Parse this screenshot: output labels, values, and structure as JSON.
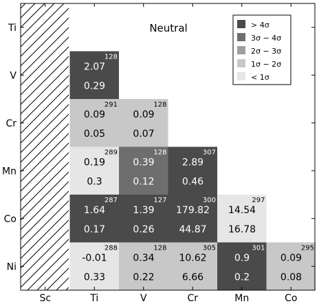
{
  "chart_data": {
    "type": "heatmap",
    "title": "Neutral",
    "xlabel": "",
    "ylabel": "",
    "x_categories": [
      "Sc",
      "Ti",
      "V",
      "Cr",
      "Mn",
      "Co"
    ],
    "y_categories": [
      "Ti",
      "V",
      "Cr",
      "Mn",
      "Co",
      "Ni"
    ],
    "hatched_column": "Sc",
    "legend": {
      "position": "top-right",
      "entries": [
        {
          "label": "> 4σ",
          "color": "#4a4a4a"
        },
        {
          "label": "3σ − 4σ",
          "color": "#6e6e6e"
        },
        {
          "label": "2σ − 3σ",
          "color": "#9e9e9e"
        },
        {
          "label": "1σ − 2σ",
          "color": "#c8c8c8"
        },
        {
          "label": "< 1σ",
          "color": "#e6e6e6"
        }
      ]
    },
    "cells": [
      {
        "row": "V",
        "col": "Ti",
        "top": "2.07",
        "bottom": "0.29",
        "count": "128",
        "level": 0
      },
      {
        "row": "Cr",
        "col": "Ti",
        "top": "0.09",
        "bottom": "0.05",
        "count": "291",
        "level": 3
      },
      {
        "row": "Cr",
        "col": "V",
        "top": "0.09",
        "bottom": "0.07",
        "count": "128",
        "level": 3
      },
      {
        "row": "Mn",
        "col": "Ti",
        "top": "0.19",
        "bottom": "0.3",
        "count": "289",
        "level": 4
      },
      {
        "row": "Mn",
        "col": "V",
        "top": "0.39",
        "bottom": "0.12",
        "count": "128",
        "level": 1
      },
      {
        "row": "Mn",
        "col": "Cr",
        "top": "2.89",
        "bottom": "0.46",
        "count": "307",
        "level": 0
      },
      {
        "row": "Co",
        "col": "Ti",
        "top": "1.64",
        "bottom": "0.17",
        "count": "287",
        "level": 0
      },
      {
        "row": "Co",
        "col": "V",
        "top": "1.39",
        "bottom": "0.26",
        "count": "127",
        "level": 0
      },
      {
        "row": "Co",
        "col": "Cr",
        "top": "179.82",
        "bottom": "44.87",
        "count": "300",
        "level": 0
      },
      {
        "row": "Co",
        "col": "Mn",
        "top": "14.54",
        "bottom": "16.78",
        "count": "297",
        "level": 4
      },
      {
        "row": "Ni",
        "col": "Ti",
        "top": "-0.01",
        "bottom": "0.33",
        "count": "288",
        "level": 4
      },
      {
        "row": "Ni",
        "col": "V",
        "top": "0.34",
        "bottom": "0.22",
        "count": "128",
        "level": 3
      },
      {
        "row": "Ni",
        "col": "Cr",
        "top": "10.62",
        "bottom": "6.66",
        "count": "305",
        "level": 3
      },
      {
        "row": "Ni",
        "col": "Mn",
        "top": "0.9",
        "bottom": "0.2",
        "count": "301",
        "level": 0
      },
      {
        "row": "Ni",
        "col": "Co",
        "top": "0.09",
        "bottom": "0.08",
        "count": "295",
        "level": 3
      }
    ],
    "grid": false
  }
}
